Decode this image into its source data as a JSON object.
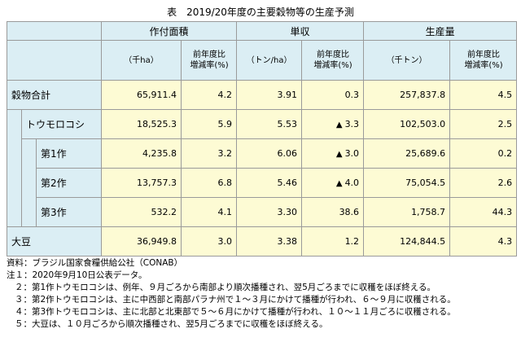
{
  "title": "表　2019/20年度の主要穀物等の生産予測",
  "groups": [
    "作付面積",
    "単収",
    "生産量"
  ],
  "units": {
    "area": "（千ha）",
    "yield": "（トン/ha）",
    "production": "（千トン）",
    "ratio_line1": "前年度比",
    "ratio_line2": "増減率(%)"
  },
  "rows": [
    {
      "label": "穀物合計",
      "area": "65,911.4",
      "area_pct": "4.2",
      "yield": "3.91",
      "yield_pct": "0.3",
      "yield_neg": false,
      "prod": "257,837.8",
      "prod_pct": "4.5"
    },
    {
      "label": "トウモロコシ",
      "area": "18,525.3",
      "area_pct": "5.9",
      "yield": "5.53",
      "yield_pct": "3.3",
      "yield_neg": true,
      "prod": "102,503.0",
      "prod_pct": "2.5"
    },
    {
      "label": "第1作",
      "area": "4,235.8",
      "area_pct": "3.2",
      "yield": "6.06",
      "yield_pct": "3.0",
      "yield_neg": true,
      "prod": "25,689.6",
      "prod_pct": "0.2"
    },
    {
      "label": "第2作",
      "area": "13,757.3",
      "area_pct": "6.8",
      "yield": "5.46",
      "yield_pct": "4.0",
      "yield_neg": true,
      "prod": "75,054.5",
      "prod_pct": "2.6"
    },
    {
      "label": "第3作",
      "area": "532.2",
      "area_pct": "4.1",
      "yield": "3.30",
      "yield_pct": "38.6",
      "yield_neg": false,
      "prod": "1,758.7",
      "prod_pct": "44.3"
    },
    {
      "label": "大豆",
      "area": "36,949.8",
      "area_pct": "3.0",
      "yield": "3.38",
      "yield_pct": "1.2",
      "yield_neg": false,
      "prod": "124,844.5",
      "prod_pct": "4.3"
    }
  ],
  "negative_marker": "▲",
  "notes": {
    "source": "資料：ブラジル国家食糧供給公社（CONAB）",
    "n1": "注１：2020年9月10日公表データ。",
    "n2": "２：第1作トウモロコシは、例年、９月ごろから南部より順次播種され、翌5月ごろまでに収穫をほぼ終える。",
    "n3": "３：第2作トウモロコシは、主に中西部と南部パラナ州で１～３月にかけて播種が行われ、６～９月に収穫される。",
    "n4": "４：第3作トウモロコシは、主に北部と北東部で５～６月にかけて播種が行われ、１０～１１月ごろに収穫される。",
    "n5": "５：大豆は、１０月ごろから順次播種され、翌5月ごろまでに収穫をほぼ終える。"
  }
}
